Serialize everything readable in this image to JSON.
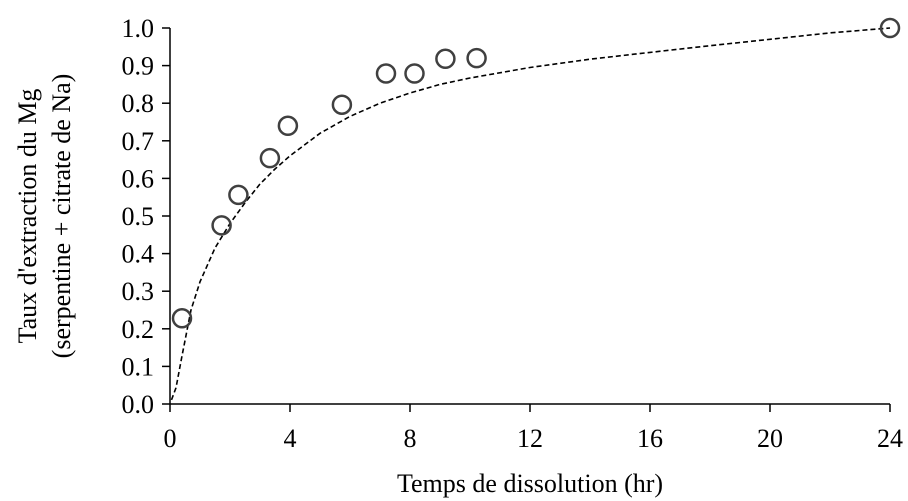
{
  "chart_data": {
    "type": "scatter",
    "xlabel": "Temps de dissolution (hr)",
    "ylabel_line1": "Taux d'extraction du Mg",
    "ylabel_line2": "(serpentine + citrate de Na)",
    "xlim": [
      0,
      24
    ],
    "ylim": [
      0.0,
      1.0
    ],
    "xticks": [
      0,
      4,
      8,
      12,
      16,
      20,
      24
    ],
    "yticks": [
      0.0,
      0.1,
      0.2,
      0.3,
      0.4,
      0.5,
      0.6,
      0.7,
      0.8,
      0.9,
      1.0
    ],
    "xtick_labels": [
      "0",
      "4",
      "8",
      "12",
      "16",
      "20",
      "24"
    ],
    "ytick_labels": [
      "0.0",
      "0.1",
      "0.2",
      "0.3",
      "0.4",
      "0.5",
      "0.6",
      "0.7",
      "0.8",
      "0.9",
      "1.0"
    ],
    "grid": false,
    "series": [
      {
        "marker": "open-circle",
        "x": [
          0.4,
          1.72,
          2.28,
          3.33,
          3.93,
          5.73,
          7.2,
          8.15,
          9.18,
          10.22,
          24.0
        ],
        "y": [
          0.228,
          0.475,
          0.556,
          0.654,
          0.74,
          0.796,
          0.879,
          0.879,
          0.918,
          0.92,
          1.0
        ]
      }
    ],
    "trendline": {
      "style": "dashed",
      "x": [
        0.05,
        0.2,
        0.4,
        0.7,
        1.0,
        1.5,
        2.0,
        2.5,
        3.0,
        3.5,
        4.0,
        5.0,
        6.0,
        7.0,
        8.0,
        9.0,
        10.0,
        12.0,
        14.0,
        16.0,
        18.0,
        20.0,
        22.0,
        24.0
      ],
      "y": [
        0.011,
        0.043,
        0.128,
        0.25,
        0.325,
        0.415,
        0.48,
        0.535,
        0.585,
        0.625,
        0.66,
        0.72,
        0.765,
        0.8,
        0.827,
        0.85,
        0.867,
        0.895,
        0.917,
        0.935,
        0.953,
        0.97,
        0.987,
        1.0
      ]
    },
    "colors": {
      "marker": "#404040",
      "line": "#000000",
      "axis": "#000000"
    }
  }
}
